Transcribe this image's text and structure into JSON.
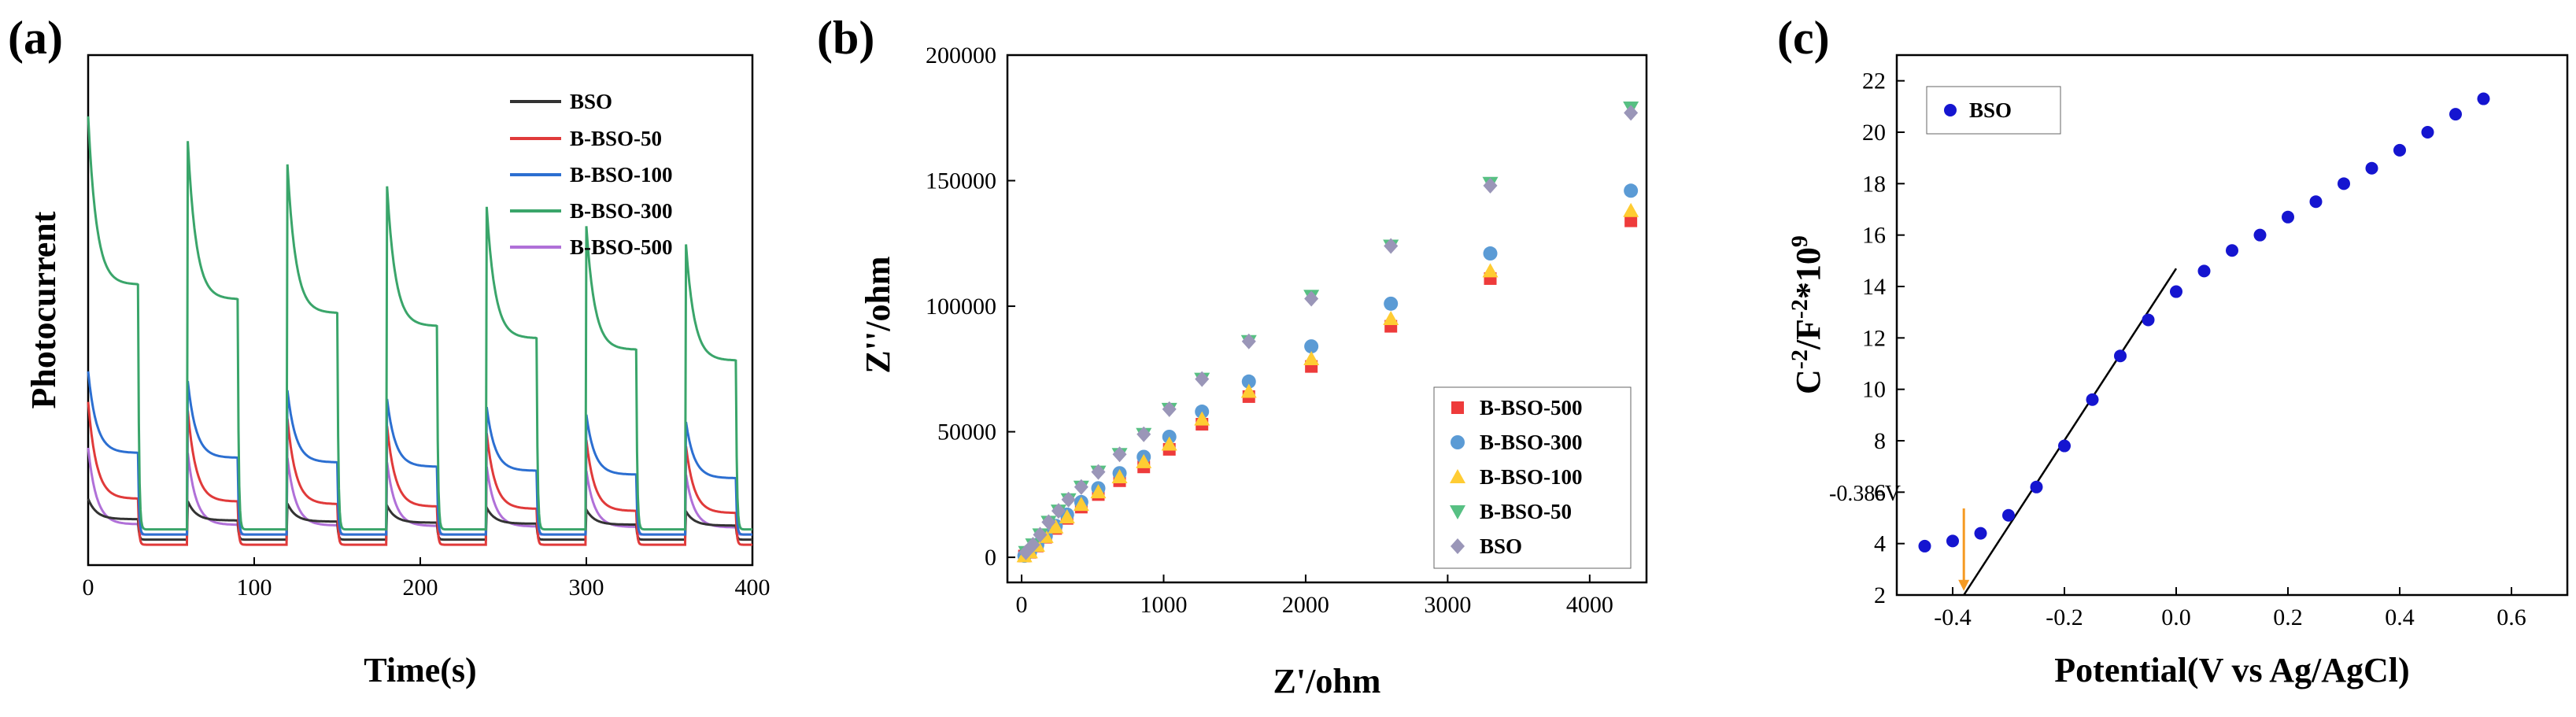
{
  "colors": {
    "BSO": "#333333",
    "B-BSO-50": "#e03a3a",
    "B-BSO-100": "#2c6fd1",
    "B-BSO-300": "#3aa56a",
    "B-BSO-500": "#b070d8",
    "nyq_B-BSO-500": "#ee3b3b",
    "nyq_B-BSO-300": "#5b9bd5",
    "nyq_B-BSO-100": "#ffcc33",
    "nyq_B-BSO-50": "#57c083",
    "nyq_BSO": "#9a96b8",
    "ms_point": "#1515d0",
    "arrow": "#f59a23"
  },
  "chart_data": [
    {
      "panel": "(a)",
      "type": "line",
      "xlabel": "Time(s)",
      "ylabel": "Photocurrent",
      "xlim": [
        0,
        400
      ],
      "ylim": [
        0,
        1
      ],
      "xticks": [
        0,
        100,
        200,
        300,
        400
      ],
      "xtick_labels": [
        "0",
        "100",
        "200",
        "300",
        "400"
      ],
      "legend_position": "top-right",
      "light_on_off_cycle_s": 60,
      "light_on_duration_s": 30,
      "series": [
        {
          "name": "BSO",
          "baseline": 0.05,
          "on_start": 0.13,
          "on_end": 0.09
        },
        {
          "name": "B-BSO-50",
          "baseline": 0.04,
          "on_start": 0.32,
          "on_end": 0.13
        },
        {
          "name": "B-BSO-100",
          "baseline": 0.06,
          "on_start": 0.38,
          "on_end": 0.22
        },
        {
          "name": "B-BSO-300",
          "baseline": 0.07,
          "on_start": 0.88,
          "on_end": 0.55
        },
        {
          "name": "B-BSO-500",
          "baseline": 0.06,
          "on_start": 0.23,
          "on_end": 0.08
        }
      ]
    },
    {
      "panel": "(b)",
      "type": "scatter",
      "xlabel": "Z'/ohm",
      "ylabel": "Z''/ohm",
      "xlim": [
        -100,
        4400
      ],
      "ylim": [
        -10000,
        200000
      ],
      "xticks": [
        0,
        1000,
        2000,
        3000,
        4000
      ],
      "xtick_labels": [
        "0",
        "1000",
        "2000",
        "3000",
        "4000"
      ],
      "yticks": [
        0,
        50000,
        100000,
        150000,
        200000
      ],
      "ytick_labels": [
        "0",
        "50000",
        "100000",
        "150000",
        "200000"
      ],
      "legend_position": "bottom-right",
      "series": [
        {
          "name": "B-BSO-500",
          "marker": "square",
          "x": [
            20,
            60,
            110,
            170,
            240,
            320,
            420,
            540,
            690,
            860,
            1040,
            1270,
            1600,
            2040,
            2600,
            3300,
            4290
          ],
          "y": [
            500,
            2000,
            4500,
            8000,
            11500,
            15500,
            20000,
            25000,
            30500,
            36000,
            43000,
            53000,
            64000,
            76000,
            92000,
            111000,
            134000
          ]
        },
        {
          "name": "B-BSO-300",
          "marker": "circle",
          "x": [
            20,
            60,
            110,
            170,
            240,
            320,
            420,
            540,
            690,
            860,
            1040,
            1270,
            1600,
            2040,
            2600,
            3300,
            4290
          ],
          "y": [
            600,
            2300,
            5000,
            8500,
            12500,
            17000,
            22000,
            27500,
            33500,
            40000,
            48000,
            58000,
            70000,
            84000,
            101000,
            121000,
            146000
          ]
        },
        {
          "name": "B-BSO-100",
          "marker": "triangle-up",
          "x": [
            20,
            60,
            110,
            170,
            240,
            320,
            420,
            540,
            690,
            860,
            1040,
            1270,
            1600,
            2040,
            2600,
            3300,
            4290
          ],
          "y": [
            550,
            2100,
            4700,
            8200,
            12000,
            16000,
            21000,
            26000,
            32000,
            38000,
            45000,
            55000,
            66000,
            79000,
            95000,
            114000,
            138000
          ]
        },
        {
          "name": "B-BSO-50",
          "marker": "triangle-down",
          "x": [
            30,
            80,
            130,
            190,
            260,
            330,
            420,
            540,
            690,
            860,
            1040,
            1270,
            1600,
            2040,
            2600,
            3300,
            4290
          ],
          "y": [
            2000,
            5000,
            9000,
            14000,
            18500,
            23000,
            28000,
            34000,
            41000,
            49000,
            59000,
            71000,
            86000,
            104000,
            124000,
            149000,
            179000
          ]
        },
        {
          "name": "BSO",
          "marker": "diamond",
          "x": [
            30,
            80,
            130,
            190,
            260,
            330,
            420,
            540,
            690,
            860,
            1040,
            1270,
            1600,
            2040,
            2600,
            3300,
            4290
          ],
          "y": [
            2000,
            5000,
            9000,
            14000,
            18500,
            23000,
            28000,
            34000,
            41000,
            49000,
            59000,
            71000,
            86000,
            103000,
            124000,
            148000,
            177000
          ]
        }
      ]
    },
    {
      "panel": "(c)",
      "type": "scatter",
      "xlabel": "Potential(V vs Ag/AgCl)",
      "ylabel": "C^-2/F^-2*10^9",
      "ylabel_parts": {
        "c": "C",
        "exp1": "-2",
        "mid": "/F",
        "exp2": "-2",
        "tail": "*10",
        "exp3": "9"
      },
      "xlim": [
        -0.5,
        0.7
      ],
      "ylim": [
        2,
        23
      ],
      "xticks": [
        -0.4,
        -0.2,
        0.0,
        0.2,
        0.4,
        0.6
      ],
      "xtick_labels": [
        "-0.4",
        "-0.2",
        "0.0",
        "0.2",
        "0.4",
        "0.6"
      ],
      "yticks": [
        2,
        4,
        6,
        8,
        10,
        12,
        14,
        16,
        18,
        20,
        22
      ],
      "ytick_labels": [
        "2",
        "4",
        "6",
        "8",
        "10",
        "12",
        "14",
        "16",
        "18",
        "20",
        "22"
      ],
      "legend_position": "top-left",
      "series": [
        {
          "name": "BSO",
          "x": [
            -0.45,
            -0.4,
            -0.35,
            -0.3,
            -0.25,
            -0.2,
            -0.15,
            -0.1,
            -0.05,
            0.0,
            0.05,
            0.1,
            0.15,
            0.2,
            0.25,
            0.3,
            0.35,
            0.4,
            0.45,
            0.5,
            0.55
          ],
          "y": [
            3.9,
            4.1,
            4.4,
            5.1,
            6.2,
            7.8,
            9.6,
            11.3,
            12.7,
            13.8,
            14.6,
            15.4,
            16.0,
            16.7,
            17.3,
            18.0,
            18.6,
            19.3,
            20.0,
            20.7,
            21.3
          ]
        }
      ],
      "fit_line": {
        "x": [
          -0.38,
          0.0
        ],
        "y": [
          2.0,
          14.7
        ]
      },
      "annotation": {
        "text": "-0.38eV",
        "x": -0.38,
        "y": 2.1
      }
    }
  ]
}
